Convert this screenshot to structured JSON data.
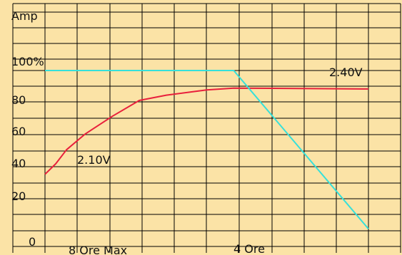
{
  "chart_data": {
    "type": "line",
    "title": "",
    "xlabel": "",
    "ylabel": "Amp",
    "ylim": [
      0,
      120
    ],
    "grid": true,
    "y_ticks": [
      {
        "value": 100,
        "label": "100%"
      },
      {
        "value": 80,
        "label": "80"
      },
      {
        "value": 60,
        "label": "60"
      },
      {
        "value": 40,
        "label": "40"
      },
      {
        "value": 20,
        "label": "20"
      },
      {
        "value": 0,
        "label": "0"
      }
    ],
    "x_labels": [
      "8 Ore Max",
      "4 Ore"
    ],
    "series": [
      {
        "label": "2.10V",
        "label_side": "lower-left",
        "color": "#e8203c",
        "points": [
          [
            0,
            41
          ],
          [
            0.4,
            47
          ],
          [
            0.8,
            55
          ],
          [
            1.5,
            64
          ],
          [
            2.5,
            74
          ],
          [
            3.5,
            83
          ],
          [
            4.5,
            86
          ],
          [
            6,
            89
          ],
          [
            7,
            90
          ],
          [
            12,
            89.5
          ]
        ]
      },
      {
        "label": "2.40V",
        "label_side": "upper-right",
        "color": "#36e0da",
        "points": [
          [
            0,
            100
          ],
          [
            7,
            100
          ],
          [
            12,
            10
          ]
        ]
      }
    ]
  }
}
